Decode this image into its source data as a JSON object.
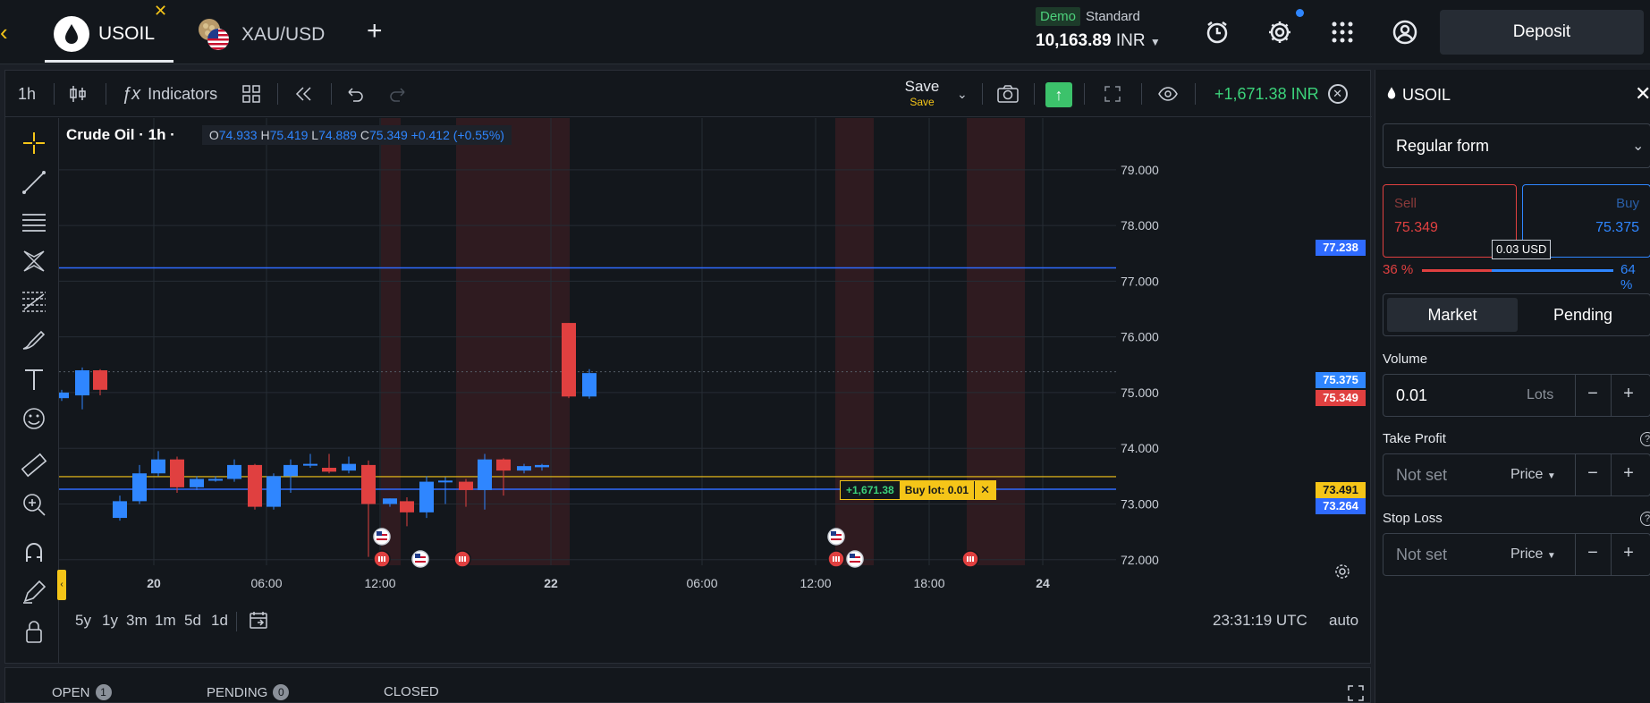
{
  "tabs": [
    {
      "label": "USOIL",
      "active": true
    },
    {
      "label": "XAU/USD",
      "active": false
    }
  ],
  "account": {
    "mode": "Demo",
    "type": "Standard",
    "balance": "10,163.89",
    "currency": "INR"
  },
  "deposit_label": "Deposit",
  "toolbar": {
    "timeframe": "1h",
    "indicators_label": "Indicators",
    "save_title": "Save",
    "save_sub": "Save",
    "pnl": "+1,671.38 INR"
  },
  "chart": {
    "legend_title": "Crude Oil · 1h ·",
    "ohlc": {
      "o_label": "O",
      "o": "74.933",
      "h_label": "H",
      "h": "75.419",
      "l_label": "L",
      "l": "74.889",
      "c_label": "C",
      "c": "75.349",
      "change": "+0.412 (+0.55%)"
    },
    "order_line": {
      "pnl": "+1,671.38",
      "label": "Buy lot: 0.01"
    },
    "price_tags": {
      "upper_line": "77.238",
      "ask": "75.375",
      "bid": "75.349",
      "entry": "73.491",
      "lower_line": "73.264"
    },
    "range_buttons": [
      "5y",
      "1y",
      "3m",
      "1m",
      "5d",
      "1d"
    ],
    "time_utc": "23:31:19 UTC",
    "scale_mode": "auto"
  },
  "chart_data": {
    "type": "candlestick",
    "title": "Crude Oil · 1h ·",
    "ylim": [
      71.9,
      79.8
    ],
    "y_ticks": [
      "79.000",
      "78.000",
      "77.000",
      "76.000",
      "75.000",
      "74.000",
      "73.000",
      "72.000"
    ],
    "x_ticks": [
      "20",
      "06:00",
      "12:00",
      "22",
      "06:00",
      "12:00",
      "18:00",
      "24"
    ],
    "candles": [
      {
        "o": 74.9,
        "h": 75.05,
        "l": 74.85,
        "c": 75.0
      },
      {
        "o": 74.95,
        "h": 75.45,
        "l": 74.7,
        "c": 75.4
      },
      {
        "o": 75.4,
        "h": 75.42,
        "l": 74.95,
        "c": 75.05
      },
      {
        "o": 72.75,
        "h": 73.15,
        "l": 72.7,
        "c": 73.05
      },
      {
        "o": 73.05,
        "h": 73.7,
        "l": 73.0,
        "c": 73.55
      },
      {
        "o": 73.55,
        "h": 73.95,
        "l": 73.5,
        "c": 73.8
      },
      {
        "o": 73.8,
        "h": 73.85,
        "l": 73.2,
        "c": 73.3
      },
      {
        "o": 73.3,
        "h": 73.5,
        "l": 73.25,
        "c": 73.45
      },
      {
        "o": 73.45,
        "h": 73.5,
        "l": 73.4,
        "c": 73.45
      },
      {
        "o": 73.45,
        "h": 73.8,
        "l": 73.4,
        "c": 73.7
      },
      {
        "o": 73.7,
        "h": 73.72,
        "l": 72.9,
        "c": 72.95
      },
      {
        "o": 72.95,
        "h": 73.55,
        "l": 72.9,
        "c": 73.5
      },
      {
        "o": 73.5,
        "h": 73.8,
        "l": 73.2,
        "c": 73.7
      },
      {
        "o": 73.7,
        "h": 73.9,
        "l": 73.65,
        "c": 73.72
      },
      {
        "o": 73.65,
        "h": 73.9,
        "l": 73.55,
        "c": 73.58
      },
      {
        "o": 73.6,
        "h": 73.85,
        "l": 73.55,
        "c": 73.72
      },
      {
        "o": 73.7,
        "h": 73.78,
        "l": 72.05,
        "c": 73.0
      },
      {
        "o": 73.0,
        "h": 73.1,
        "l": 72.95,
        "c": 73.1
      },
      {
        "o": 73.05,
        "h": 73.12,
        "l": 72.6,
        "c": 72.85
      },
      {
        "o": 72.85,
        "h": 73.5,
        "l": 72.75,
        "c": 73.4
      },
      {
        "o": 73.4,
        "h": 73.48,
        "l": 73.0,
        "c": 73.42
      },
      {
        "o": 73.4,
        "h": 73.45,
        "l": 72.95,
        "c": 73.25
      },
      {
        "o": 73.25,
        "h": 73.9,
        "l": 72.9,
        "c": 73.8
      },
      {
        "o": 73.8,
        "h": 73.82,
        "l": 73.15,
        "c": 73.6
      },
      {
        "o": 73.6,
        "h": 73.72,
        "l": 73.55,
        "c": 73.68
      },
      {
        "o": 73.66,
        "h": 73.72,
        "l": 73.6,
        "c": 73.7
      },
      {
        "o": 76.25,
        "h": 76.25,
        "l": 74.9,
        "c": 74.93
      },
      {
        "o": 74.93,
        "h": 75.42,
        "l": 74.89,
        "c": 75.35
      }
    ],
    "lines": {
      "upper": 77.238,
      "ask": 75.375,
      "bid": 75.349,
      "entry": 73.491,
      "lower": 73.264
    }
  },
  "positions_tabs": [
    {
      "label": "OPEN",
      "count": "1"
    },
    {
      "label": "PENDING",
      "count": "0"
    },
    {
      "label": "CLOSED",
      "count": ""
    }
  ],
  "trade_panel": {
    "symbol": "USOIL",
    "form_type": "Regular form",
    "sell_label": "Sell",
    "sell_price": "75.349",
    "buy_label": "Buy",
    "buy_price": "75.375",
    "spread": "0.03 USD",
    "sell_pct": "36 %",
    "buy_pct": "64 %",
    "mode_market": "Market",
    "mode_pending": "Pending",
    "volume_label": "Volume",
    "volume_value": "0.01",
    "volume_unit": "Lots",
    "tp_label": "Take Profit",
    "tp_value": "Not set",
    "tp_unit": "Price",
    "sl_label": "Stop Loss",
    "sl_value": "Not set",
    "sl_unit": "Price"
  },
  "colors": {
    "bull": "#2f86ff",
    "bear": "#e04040",
    "accent": "#f5c518",
    "profit": "#3cd27a"
  }
}
